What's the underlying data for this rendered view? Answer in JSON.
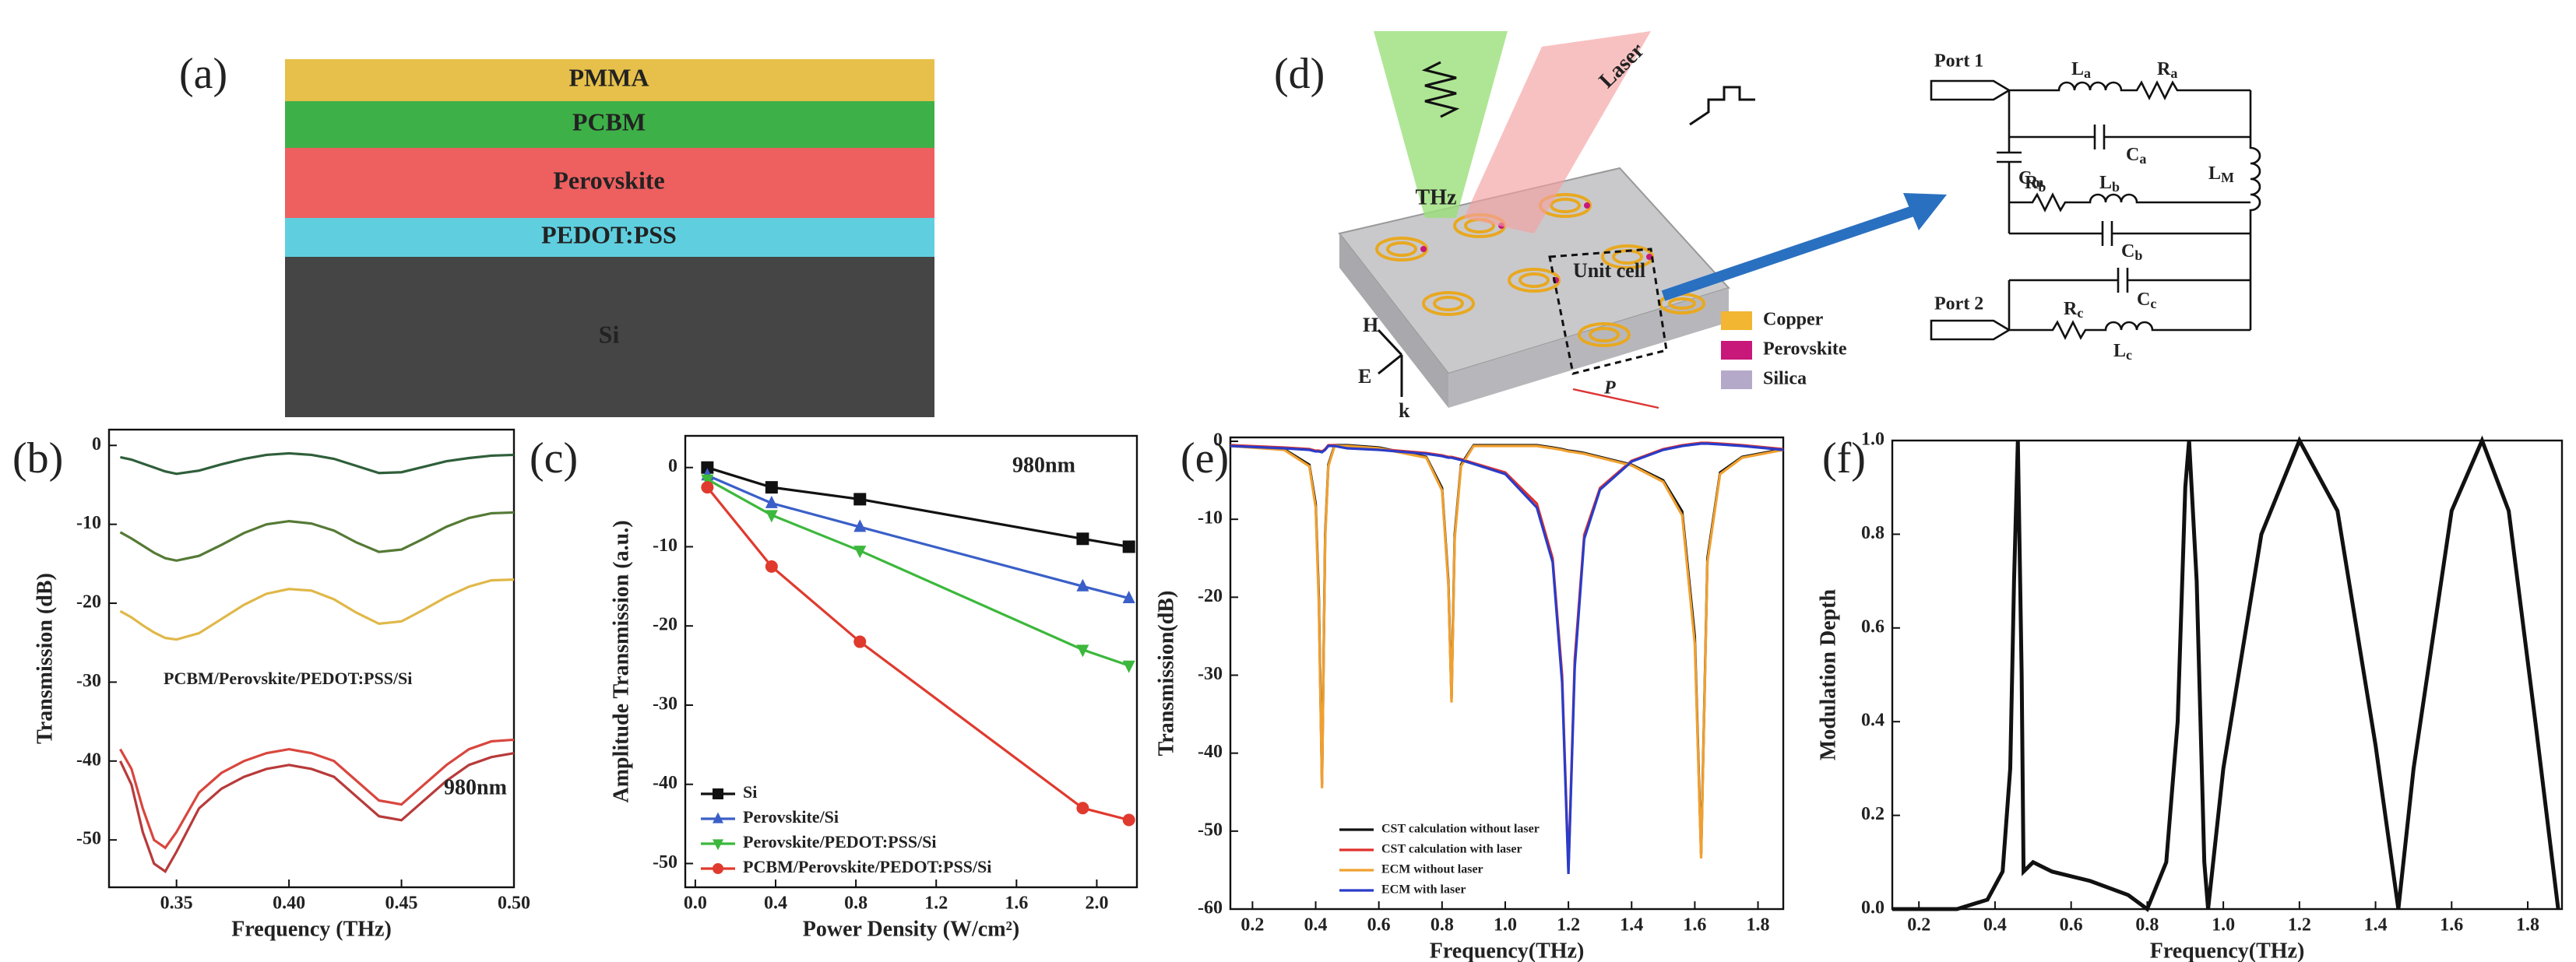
{
  "panel_labels": [
    "(a)",
    "(b)",
    "(c)",
    "(d)",
    "(e)",
    "(f)"
  ],
  "layers": [
    {
      "label": "PMMA",
      "color": "#e6c04a"
    },
    {
      "label": "PCBM",
      "color": "#3eb048"
    },
    {
      "label": "Perovskite",
      "color": "#ee5f5f"
    },
    {
      "label": "PEDOT:PSS",
      "color": "#5fcfe0"
    },
    {
      "label": "Si",
      "color": "#454545"
    }
  ],
  "schematic": {
    "beams": [
      "THz",
      "Laser"
    ],
    "unit_cell": "Unit cell",
    "axes": [
      "H",
      "E",
      "k"
    ],
    "period": "P",
    "materials": [
      {
        "label": "Copper",
        "color": "#f2b632"
      },
      {
        "label": "Perovskite",
        "color": "#c8187a"
      },
      {
        "label": "Silica",
        "color": "#b5a9c9"
      }
    ],
    "ports": [
      "Port 1",
      "Port 2"
    ],
    "elements": [
      {
        "symbol": "L",
        "sub": "a"
      },
      {
        "symbol": "R",
        "sub": "a"
      },
      {
        "symbol": "C",
        "sub": "a"
      },
      {
        "symbol": "C",
        "sub": "m"
      },
      {
        "symbol": "L",
        "sub": "M"
      },
      {
        "symbol": "R",
        "sub": "b"
      },
      {
        "symbol": "L",
        "sub": "b"
      },
      {
        "symbol": "C",
        "sub": "b"
      },
      {
        "symbol": "C",
        "sub": "c"
      },
      {
        "symbol": "R",
        "sub": "c"
      },
      {
        "symbol": "L",
        "sub": "c"
      }
    ]
  },
  "chart_data": [
    {
      "type": "line",
      "xlabel": "Frequency (THz)",
      "ylabel": "Transmission (dB)",
      "x": [
        0.325,
        0.33,
        0.335,
        0.34,
        0.345,
        0.35,
        0.36,
        0.37,
        0.38,
        0.39,
        0.4,
        0.41,
        0.42,
        0.43,
        0.44,
        0.45,
        0.46,
        0.47,
        0.48,
        0.49,
        0.5
      ],
      "series": [
        {
          "color": "#2f5f3a",
          "values": [
            -1.5,
            -1.8,
            -2.3,
            -2.8,
            -3.3,
            -3.6,
            -3.2,
            -2.4,
            -1.7,
            -1.2,
            -1.0,
            -1.2,
            -1.7,
            -2.6,
            -3.5,
            -3.4,
            -2.7,
            -2.0,
            -1.6,
            -1.3,
            -1.2
          ]
        },
        {
          "color": "#557a35",
          "values": [
            -11,
            -11.8,
            -12.7,
            -13.6,
            -14.3,
            -14.6,
            -14.0,
            -12.6,
            -11.1,
            -10,
            -9.6,
            -9.9,
            -10.8,
            -12.3,
            -13.5,
            -13.2,
            -11.8,
            -10.3,
            -9.2,
            -8.6,
            -8.5
          ]
        },
        {
          "color": "#e0b84a",
          "values": [
            -21,
            -21.8,
            -22.8,
            -23.7,
            -24.4,
            -24.6,
            -23.8,
            -22.0,
            -20.2,
            -18.8,
            -18.2,
            -18.4,
            -19.5,
            -21.2,
            -22.6,
            -22.3,
            -20.8,
            -19.2,
            -17.9,
            -17.1,
            -17
          ]
        },
        {
          "color": "#d9463e",
          "values": [
            -38.5,
            -41,
            -46,
            -50,
            -51,
            -49,
            -44,
            -41.5,
            -40,
            -39,
            -38.5,
            -39,
            -40,
            -42.5,
            -45,
            -45.5,
            -43,
            -40.5,
            -38.5,
            -37.5,
            -37.3
          ]
        },
        {
          "color": "#b83a3a",
          "values": [
            -40,
            -43,
            -49,
            -53,
            -54,
            -51.5,
            -46,
            -43.5,
            -42,
            -41,
            -40.5,
            -41,
            -42,
            -44.5,
            -47,
            -47.5,
            -45,
            -42.5,
            -40.5,
            -39.5,
            -39
          ]
        }
      ],
      "annotations": [
        {
          "text": "PCBM/Perovskite/PEDOT:PSS/Si",
          "color": "#222222"
        },
        {
          "text": "980nm",
          "color": "#c8187a"
        }
      ],
      "xlim": [
        0.32,
        0.5
      ],
      "ylim": [
        -56,
        2
      ],
      "xticks": [
        0.35,
        {
          "value": 0.4,
          "label": "0.40"
        },
        0.45,
        {
          "value": 0.5,
          "label": "0.50"
        }
      ],
      "yticks": [
        0,
        -10,
        -20,
        -30,
        -40,
        -50
      ]
    },
    {
      "type": "line",
      "xlabel": "Power Density (W/cm²)",
      "ylabel": "Amplitude Transmission (a.u.)",
      "x": [
        0.06,
        0.38,
        0.82,
        1.93,
        2.16
      ],
      "series": [
        {
          "name": "Si",
          "color": "#111111",
          "marker": "square",
          "values": [
            0,
            -2.5,
            -4,
            -9,
            -10
          ]
        },
        {
          "name": "Perovskite/Si",
          "color": "#3a5fc8",
          "marker": "triangle",
          "values": [
            -1,
            -4.5,
            -7.5,
            -15,
            -16.5
          ]
        },
        {
          "name": "Perovskite/PEDOT:PSS/Si",
          "color": "#3cb83c",
          "marker": "triangle-down",
          "values": [
            -1.5,
            -6,
            -10.5,
            -23,
            -25
          ]
        },
        {
          "name": "PCBM/Perovskite/PEDOT:PSS/Si",
          "color": "#e03a2e",
          "marker": "circle",
          "values": [
            -2.5,
            -12.5,
            -22,
            -43,
            -44.5
          ]
        }
      ],
      "annotations": [
        {
          "text": "980nm",
          "color": "#c8187a"
        }
      ],
      "legend": "lower left",
      "xlim": [
        -0.05,
        2.2
      ],
      "ylim": [
        -53,
        4
      ],
      "xticks": [
        {
          "value": 0,
          "label": "0.0"
        },
        0.4,
        0.8,
        1.2,
        1.6,
        {
          "value": 2,
          "label": "2.0"
        }
      ],
      "yticks": [
        0,
        -10,
        -20,
        -30,
        -40,
        -50
      ]
    },
    {
      "type": "line",
      "xlabel": "Frequency(THz)",
      "ylabel": "Transmission(dB)",
      "x": [
        0.13,
        0.3,
        0.38,
        0.4,
        0.41,
        0.42,
        0.43,
        0.44,
        0.46,
        0.5,
        0.6,
        0.75,
        0.8,
        0.82,
        0.83,
        0.84,
        0.86,
        0.9,
        1.0,
        1.1,
        1.15,
        1.18,
        1.2,
        1.22,
        1.25,
        1.3,
        1.4,
        1.5,
        1.56,
        1.6,
        1.62,
        1.64,
        1.68,
        1.75,
        1.88
      ],
      "series": [
        {
          "name": "CST calculation without laser",
          "color": "#111111",
          "values": [
            -0.5,
            -1,
            -3,
            -8,
            -20,
            -44,
            -12,
            -3,
            -0.5,
            -0.5,
            -0.8,
            -2,
            -6,
            -18,
            -33,
            -12,
            -3,
            -0.5,
            -0.5,
            -0.5,
            -0.8,
            -1,
            -1.2,
            -1.3,
            -1.5,
            -2,
            -3,
            -5,
            -9,
            -25,
            -53,
            -15,
            -4,
            -2,
            -1
          ]
        },
        {
          "name": "CST calculation with laser",
          "color": "#e0302a",
          "values": [
            -0.5,
            -0.8,
            -1,
            -1.2,
            -1.2,
            -1.3,
            -1,
            -0.5,
            -0.5,
            -0.8,
            -1,
            -1.5,
            -1.8,
            -2,
            -2,
            -2.1,
            -2.3,
            -2.8,
            -4,
            -8,
            -15,
            -30,
            -55,
            -28,
            -12,
            -6,
            -2.5,
            -1,
            -0.5,
            -0.3,
            -0.2,
            -0.2,
            -0.3,
            -0.5,
            -1
          ]
        },
        {
          "name": "ECM without laser",
          "color": "#f0a030",
          "values": [
            -0.6,
            -1.1,
            -3.2,
            -8.5,
            -21,
            -44.5,
            -12.5,
            -3.2,
            -0.6,
            -0.6,
            -0.9,
            -2.1,
            -6.3,
            -18.5,
            -33.5,
            -12.5,
            -3.2,
            -0.6,
            -0.6,
            -0.6,
            -0.9,
            -1.1,
            -1.3,
            -1.4,
            -1.6,
            -2.1,
            -3.1,
            -5.2,
            -9.5,
            -26,
            -53.5,
            -15.5,
            -4.2,
            -2.1,
            -1.1
          ]
        },
        {
          "name": "ECM with laser",
          "color": "#2a3cc8",
          "values": [
            -0.6,
            -0.9,
            -1.1,
            -1.3,
            -1.3,
            -1.4,
            -1.1,
            -0.6,
            -0.6,
            -0.9,
            -1.1,
            -1.6,
            -1.9,
            -2.1,
            -2.1,
            -2.2,
            -2.4,
            -2.9,
            -4.2,
            -8.5,
            -15.5,
            -31,
            -55.5,
            -29,
            -12.5,
            -6.2,
            -2.6,
            -1.1,
            -0.6,
            -0.4,
            -0.3,
            -0.3,
            -0.4,
            -0.6,
            -1.1
          ]
        }
      ],
      "legend": "lower left",
      "xlim": [
        0.13,
        1.88
      ],
      "ylim": [
        -60,
        0.5
      ],
      "xticks": [
        0.2,
        0.4,
        0.6,
        0.8,
        {
          "value": 1,
          "label": "1.0"
        },
        1.2,
        1.4,
        1.6,
        1.8
      ],
      "yticks": [
        0,
        -10,
        -20,
        -30,
        -40,
        -50,
        -60
      ]
    },
    {
      "type": "line",
      "xlabel": "Frequency(THz)",
      "ylabel": "Modulation Depth",
      "x": [
        0.13,
        0.3,
        0.38,
        0.42,
        0.44,
        0.45,
        0.46,
        0.47,
        0.475,
        0.5,
        0.55,
        0.65,
        0.75,
        0.8,
        0.85,
        0.88,
        0.9,
        0.91,
        0.93,
        0.95,
        0.96,
        1.0,
        1.1,
        1.2,
        1.3,
        1.4,
        1.46,
        1.5,
        1.6,
        1.68,
        1.75,
        1.82,
        1.88
      ],
      "series": [
        {
          "color": "#111111",
          "values": [
            0,
            0,
            0.02,
            0.08,
            0.3,
            0.7,
            1.0,
            0.5,
            0.08,
            0.1,
            0.08,
            0.06,
            0.03,
            0,
            0.1,
            0.4,
            0.9,
            1.0,
            0.7,
            0.1,
            0,
            0.3,
            0.8,
            1.0,
            0.85,
            0.35,
            0,
            0.3,
            0.85,
            1.0,
            0.85,
            0.4,
            0
          ]
        }
      ],
      "xlim": [
        0.13,
        1.89
      ],
      "ylim": [
        0,
        1
      ],
      "xticks": [
        0.2,
        0.4,
        0.6,
        0.8,
        {
          "value": 1,
          "label": "1.0"
        },
        1.2,
        1.4,
        1.6,
        1.8
      ],
      "yticks": [
        {
          "value": 0,
          "label": "0.0"
        },
        0.2,
        0.4,
        0.6,
        0.8,
        {
          "value": 1,
          "label": "1.0"
        }
      ]
    }
  ]
}
